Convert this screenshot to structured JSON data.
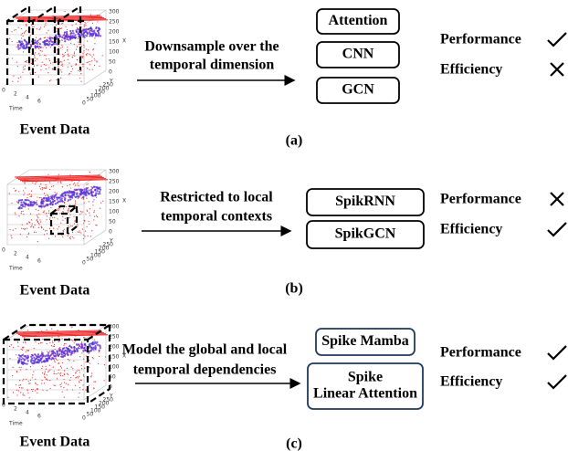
{
  "event_plot": {
    "z_ticks": [
      "300",
      "250",
      "200",
      "150",
      "100",
      "50",
      "0"
    ],
    "z_label": "X",
    "time_ticks": [
      "0",
      "2",
      "4",
      "6"
    ],
    "time_label": "Time",
    "y_ticks": [
      "0",
      "50",
      "100",
      "150",
      "200",
      "250"
    ],
    "y_label": "Y"
  },
  "panels": [
    {
      "label": "(a)",
      "caption": "Event Data",
      "arrow_text": [
        "Downsample over the",
        "temporal dimension"
      ],
      "boxes": [
        [
          "Attention"
        ],
        [
          "CNN"
        ],
        [
          "GCN"
        ]
      ],
      "box_color": "#000000",
      "metrics": [
        {
          "name": "Performance",
          "mark": "check"
        },
        {
          "name": "Efficiency",
          "mark": "cross"
        }
      ]
    },
    {
      "label": "(b)",
      "caption": "Event Data",
      "arrow_text": [
        "Restricted to local",
        "temporal contexts"
      ],
      "boxes": [
        [
          "SpikRNN"
        ],
        [
          "SpikGCN"
        ]
      ],
      "box_color": "#000000",
      "metrics": [
        {
          "name": "Performance",
          "mark": "cross"
        },
        {
          "name": "Efficiency",
          "mark": "check"
        }
      ]
    },
    {
      "label": "(c)",
      "caption": "Event Data",
      "arrow_text": [
        "Model the global and local",
        "temporal dependencies"
      ],
      "boxes": [
        [
          "Spike Mamba"
        ],
        [
          "Spike",
          "Linear Attention"
        ]
      ],
      "box_color": "#1f3a5f",
      "metrics": [
        {
          "name": "Performance",
          "mark": "check"
        },
        {
          "name": "Efficiency",
          "mark": "check"
        }
      ]
    }
  ]
}
